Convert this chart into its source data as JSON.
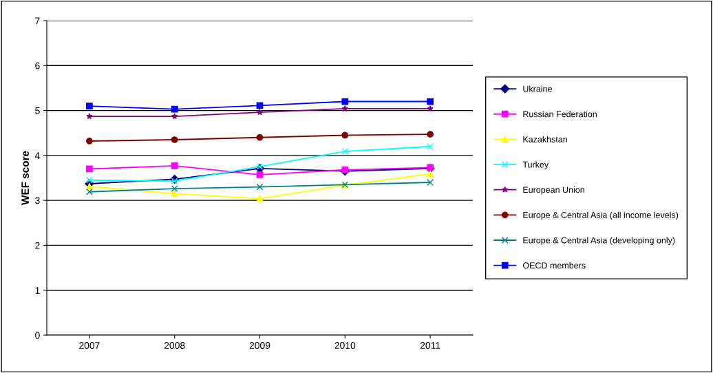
{
  "chart_data": {
    "type": "line",
    "ylabel": "WEF score",
    "categories": [
      "2007",
      "2008",
      "2009",
      "2010",
      "2011"
    ],
    "ylim": [
      0,
      7
    ],
    "yticks": [
      0,
      1,
      2,
      3,
      4,
      5,
      6,
      7
    ],
    "grid": "y",
    "legend": "right",
    "series": [
      {
        "name": "Ukraine",
        "color": "#000080",
        "marker": "diamond",
        "values": [
          3.37,
          3.47,
          3.71,
          3.65,
          3.71
        ]
      },
      {
        "name": "Russian Federation",
        "color": "#ff00ff",
        "marker": "square",
        "values": [
          3.7,
          3.77,
          3.57,
          3.68,
          3.73
        ]
      },
      {
        "name": "Kazakhstan",
        "color": "#ffff00",
        "marker": "triangle",
        "values": [
          3.31,
          3.15,
          3.04,
          3.34,
          3.59
        ]
      },
      {
        "name": "Turkey",
        "color": "#00ffff",
        "marker": "cross",
        "values": [
          3.45,
          3.43,
          3.75,
          4.09,
          4.2
        ]
      },
      {
        "name": "European Union",
        "color": "#800080",
        "marker": "star",
        "values": [
          4.87,
          4.87,
          4.96,
          5.04,
          5.04
        ]
      },
      {
        "name": "Europe & Central Asia (all income levels)",
        "color": "#800000",
        "marker": "circle",
        "values": [
          4.32,
          4.35,
          4.4,
          4.45,
          4.47
        ]
      },
      {
        "name": "Europe & Central Asia (developing only)",
        "color": "#008080",
        "marker": "cross",
        "values": [
          3.19,
          3.26,
          3.3,
          3.35,
          3.4
        ]
      },
      {
        "name": "OECD members",
        "color": "#0000ff",
        "marker": "square",
        "values": [
          5.1,
          5.03,
          5.11,
          5.2,
          5.2
        ]
      }
    ]
  }
}
